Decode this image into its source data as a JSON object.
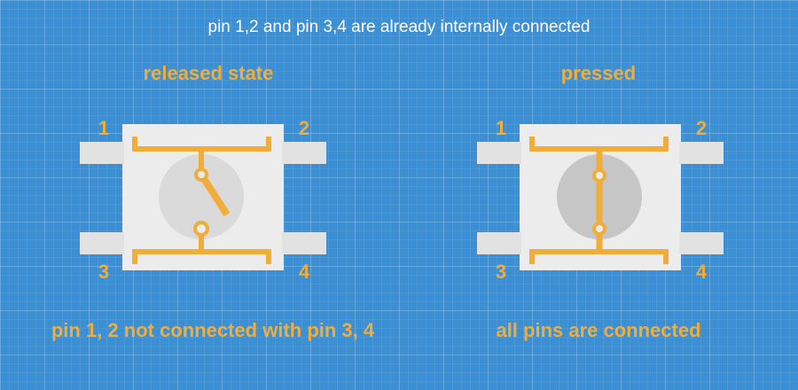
{
  "header": {
    "note": "pin 1,2 and pin 3,4 are already internally connected"
  },
  "left_panel": {
    "title": "released state",
    "caption": "pin 1, 2 not connected with pin 3, 4",
    "pins": [
      "1",
      "2",
      "3",
      "4"
    ]
  },
  "right_panel": {
    "title": "pressed",
    "caption": "all pins are connected",
    "pins": [
      "1",
      "2",
      "3",
      "4"
    ]
  },
  "colors": {
    "background": "#3b8fd4",
    "accent": "#f0ad3a",
    "body": "#ececec",
    "leg": "#e2e2e2",
    "circle_released": "#dadada",
    "circle_pressed": "#c6c6c6",
    "header_text": "#ffffff"
  }
}
